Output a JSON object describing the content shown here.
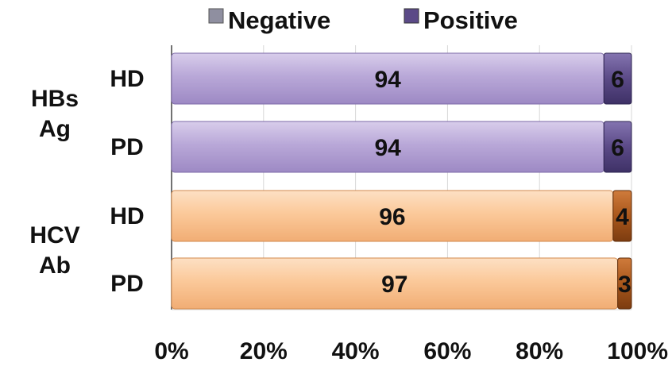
{
  "colors": {
    "hbs_negative": "#b7a6d6",
    "hbs_positive": "#5b4a87",
    "hcv_negative": "#fbc99a",
    "hcv_positive": "#a9571c",
    "grid": "#d7d7d7",
    "axis": "#444444"
  },
  "chart_data": {
    "type": "bar",
    "orientation": "horizontal",
    "stacked": true,
    "percent": true,
    "title": "",
    "xlabel": "",
    "ylabel": "",
    "xlim": [
      0,
      100
    ],
    "xticks": [
      "0%",
      "20%",
      "40%",
      "60%",
      "80%",
      "100%"
    ],
    "legend": {
      "position": "top",
      "entries": [
        "Negative",
        "Positive"
      ]
    },
    "groups": [
      {
        "label": "HBs Ag",
        "lines": [
          "HBs",
          "Ag"
        ],
        "rows": [
          "HD",
          "PD"
        ]
      },
      {
        "label": "HCV Ab",
        "lines": [
          "HCV",
          "Ab"
        ],
        "rows": [
          "HD",
          "PD"
        ]
      }
    ],
    "categories": [
      "HD",
      "PD",
      "HD",
      "PD"
    ],
    "series": [
      {
        "name": "Negative",
        "values": [
          94,
          94,
          96,
          97
        ]
      },
      {
        "name": "Positive",
        "values": [
          6,
          6,
          4,
          3
        ]
      }
    ],
    "grid": true
  }
}
